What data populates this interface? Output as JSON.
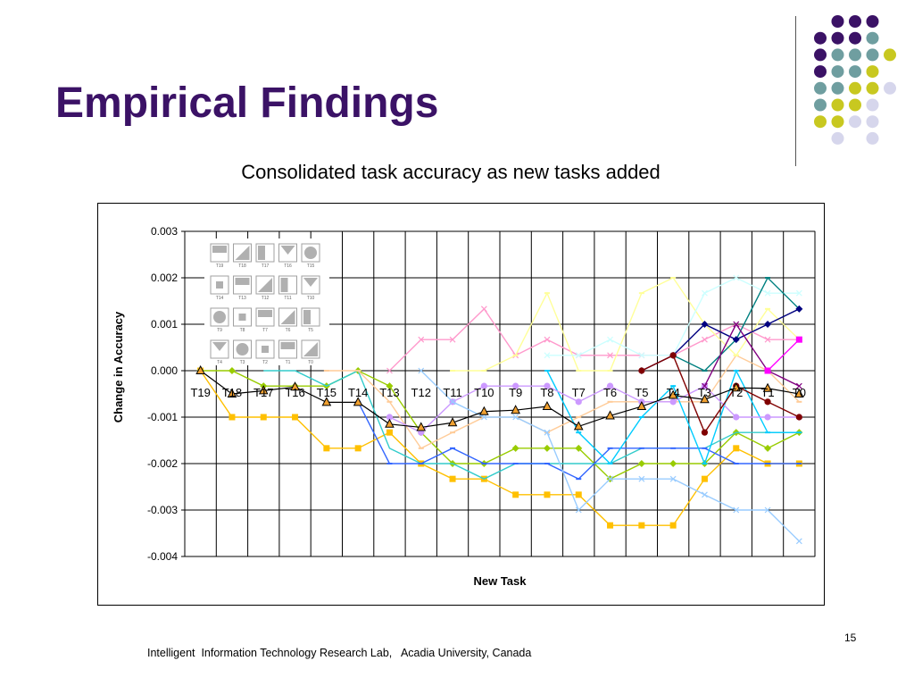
{
  "slide": {
    "title": "Empirical Findings",
    "subtitle": "Consolidated task accuracy as new tasks added",
    "footer": "Intelligent  Information Technology Research Lab,   Acadia University, Canada",
    "page_number": "15"
  },
  "decor_colors": {
    "purple": "#3b1266",
    "teal": "#6f9ea0",
    "olive": "#c8c820",
    "lavender": "#d6d6ec"
  },
  "chart_data": {
    "type": "line",
    "xlabel": "New Task",
    "ylabel": "Change in Accuracy",
    "ylim": [
      -0.004,
      0.003
    ],
    "yticks": [
      "0.003",
      "0.002",
      "0.001",
      "0.000",
      "-0.001",
      "-0.002",
      "-0.003",
      "-0.004"
    ],
    "grid": true,
    "categories": [
      "T19",
      "T18",
      "T17",
      "T16",
      "T15",
      "T14",
      "T13",
      "T12",
      "T11",
      "T10",
      "T9",
      "T8",
      "T7",
      "T6",
      "T5",
      "T4",
      "T3",
      "T2",
      "T1",
      "T0"
    ],
    "inset_legend_labels": [
      "T19",
      "T18",
      "T17",
      "T16",
      "T15",
      "T14",
      "T13",
      "T12",
      "T11",
      "T10",
      "T9",
      "T8",
      "T7",
      "T6",
      "T5",
      "T4",
      "T3",
      "T2",
      "T1",
      "T0"
    ],
    "series": [
      {
        "color": "#ffc000",
        "marker": "square",
        "values": [
          0,
          -0.001,
          -0.001,
          -0.001,
          -0.00167,
          -0.00167,
          -0.00133,
          -0.002,
          -0.00233,
          -0.00233,
          -0.00267,
          -0.00267,
          -0.00267,
          -0.00333,
          -0.00333,
          -0.00333,
          -0.00233,
          -0.00167,
          -0.002,
          -0.002
        ]
      },
      {
        "color": "#99cc00",
        "marker": "diamond",
        "values": [
          0,
          0,
          -0.00033,
          -0.00033,
          -0.00033,
          0,
          -0.00033,
          -0.00133,
          -0.002,
          -0.002,
          -0.00167,
          -0.00167,
          -0.00167,
          -0.00233,
          -0.002,
          -0.002,
          -0.002,
          -0.00133,
          -0.00167,
          -0.00133
        ]
      },
      {
        "color": "#33cccc",
        "marker": "none",
        "values": [
          null,
          null,
          0,
          0,
          -0.00033,
          0,
          -0.00167,
          -0.002,
          -0.002,
          -0.00233,
          -0.002,
          -0.002,
          -0.002,
          -0.002,
          -0.00167,
          -0.00167,
          -0.00167,
          -0.00133,
          -0.00133,
          -0.00133
        ]
      },
      {
        "color": "#3366ff",
        "marker": "dash",
        "values": [
          null,
          null,
          null,
          null,
          null,
          -0.00067,
          -0.002,
          -0.002,
          -0.00167,
          -0.002,
          -0.002,
          -0.002,
          -0.00233,
          -0.00167,
          -0.00167,
          -0.00167,
          -0.00167,
          -0.002,
          -0.002,
          -0.002
        ]
      },
      {
        "color": "#ff99cc",
        "marker": "x",
        "values": [
          null,
          null,
          null,
          null,
          null,
          null,
          0,
          0.00067,
          0.00067,
          0.00133,
          0.00033,
          0.00067,
          0.00033,
          0.00033,
          0.00033,
          0.00033,
          0.00067,
          0.001,
          0.00067,
          0.00067
        ]
      },
      {
        "color": "#ffcc99",
        "marker": "dash",
        "values": [
          null,
          null,
          null,
          null,
          0,
          0,
          -0.00067,
          -0.00167,
          -0.00133,
          -0.001,
          -0.001,
          -0.00133,
          -0.001,
          -0.00067,
          -0.00067,
          -0.00067,
          -0.00067,
          0.00033,
          0,
          -0.00067
        ]
      },
      {
        "color": "#ffff99",
        "marker": "dash",
        "values": [
          null,
          null,
          null,
          null,
          null,
          null,
          null,
          null,
          0,
          0,
          0.00033,
          0.00167,
          0,
          0,
          0.00167,
          0.002,
          0.001,
          0.00033,
          0.00133,
          0.00067
        ]
      },
      {
        "color": "#00ccff",
        "marker": "dash",
        "values": [
          null,
          null,
          null,
          null,
          null,
          null,
          null,
          null,
          null,
          null,
          null,
          0,
          -0.00133,
          -0.002,
          -0.001,
          -0.00033,
          -0.002,
          0,
          -0.00133,
          -0.00133
        ]
      },
      {
        "color": "#cc99ff",
        "marker": "circle",
        "values": [
          null,
          null,
          null,
          null,
          null,
          null,
          -0.001,
          -0.00133,
          -0.00067,
          -0.00033,
          -0.00033,
          -0.00033,
          -0.00067,
          -0.00033,
          -0.00067,
          -0.00067,
          -0.00033,
          -0.001,
          -0.001,
          -0.001
        ]
      },
      {
        "color": "#99ccff",
        "marker": "x",
        "values": [
          null,
          null,
          null,
          null,
          null,
          null,
          null,
          0,
          -0.00067,
          -0.001,
          -0.001,
          -0.00133,
          -0.003,
          -0.00233,
          -0.00233,
          -0.00233,
          -0.00267,
          -0.003,
          -0.003,
          -0.00367
        ]
      },
      {
        "color": "#ccffff",
        "marker": "x",
        "values": [
          null,
          null,
          null,
          null,
          null,
          null,
          null,
          null,
          null,
          null,
          null,
          0.00033,
          0.00033,
          0.00067,
          0.00033,
          0.00033,
          0.00167,
          0.002,
          0.00167,
          0.00167
        ]
      },
      {
        "color": "#008080",
        "marker": "dash",
        "values": [
          null,
          null,
          null,
          null,
          null,
          null,
          null,
          null,
          null,
          null,
          null,
          null,
          null,
          null,
          null,
          0.00033,
          0,
          0.00067,
          0.002,
          0.00133
        ]
      },
      {
        "color": "#000080",
        "marker": "diamond",
        "values": [
          null,
          null,
          null,
          null,
          null,
          null,
          null,
          null,
          null,
          null,
          null,
          null,
          null,
          null,
          0,
          0.00033,
          0.001,
          0.00067,
          0.001,
          0.00133
        ]
      },
      {
        "color": "#800000",
        "marker": "circle",
        "values": [
          null,
          null,
          null,
          null,
          null,
          null,
          null,
          null,
          null,
          null,
          null,
          null,
          null,
          null,
          0,
          0.00033,
          -0.00133,
          -0.00033,
          -0.00067,
          -0.001
        ]
      },
      {
        "color": "#800080",
        "marker": "x",
        "values": [
          null,
          null,
          null,
          null,
          null,
          null,
          null,
          null,
          null,
          null,
          null,
          null,
          null,
          null,
          null,
          null,
          -0.00033,
          0.001,
          0,
          -0.00033
        ]
      },
      {
        "color": "#ff00ff",
        "marker": "square",
        "values": [
          null,
          null,
          null,
          null,
          null,
          null,
          null,
          null,
          null,
          null,
          null,
          null,
          null,
          null,
          null,
          null,
          null,
          null,
          0,
          0.00067
        ]
      },
      {
        "color": "#000000",
        "marker": "triangle",
        "values": [
          0,
          -0.0005,
          -0.00043,
          -0.00035,
          -0.00068,
          -0.00068,
          -0.00115,
          -0.00122,
          -0.00112,
          -0.00088,
          -0.00085,
          -0.00077,
          -0.0012,
          -0.00097,
          -0.00077,
          -0.00053,
          -0.00062,
          -0.00037,
          -0.00038,
          -0.0005
        ]
      }
    ]
  }
}
